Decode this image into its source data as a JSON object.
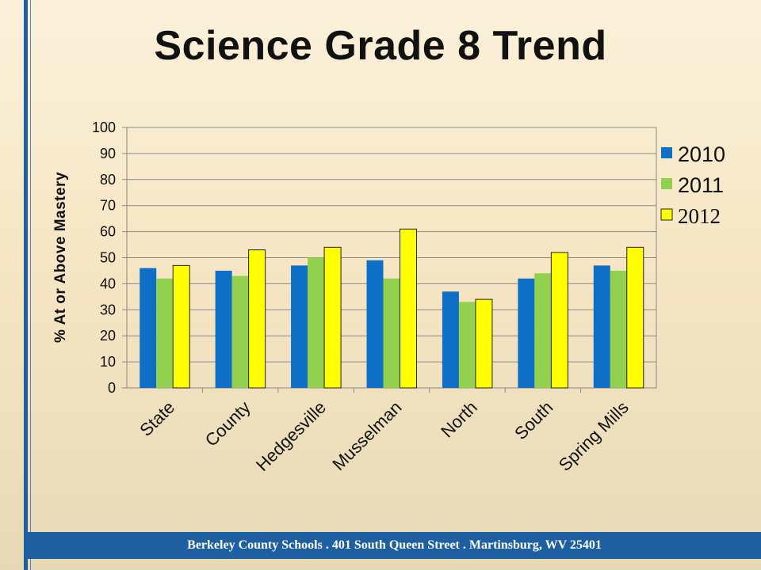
{
  "slide": {
    "title": "Science Grade 8 Trend",
    "footer": "Berkeley County Schools . 401 South Queen Street . Martinsburg, WV  25401"
  },
  "chart_data": {
    "type": "bar",
    "title": "",
    "xlabel": "",
    "ylabel": "% At or Above Mastery",
    "ylim": [
      0,
      100
    ],
    "yticks": [
      0,
      10,
      20,
      30,
      40,
      50,
      60,
      70,
      80,
      90,
      100
    ],
    "grid": true,
    "legend_position": "right",
    "categories": [
      "State",
      "County",
      "Hedgesville",
      "Musselman",
      "North",
      "South",
      "Spring Mills"
    ],
    "series": [
      {
        "name": "2010",
        "color": "#0f6fc6",
        "values": [
          46,
          45,
          47,
          49,
          37,
          42,
          47
        ]
      },
      {
        "name": "2011",
        "color": "#92d050",
        "values": [
          42,
          43,
          50,
          42,
          33,
          44,
          45
        ]
      },
      {
        "name": "2012",
        "color": "#ffff00",
        "values": [
          47,
          53,
          54,
          61,
          34,
          52,
          54
        ]
      }
    ]
  }
}
